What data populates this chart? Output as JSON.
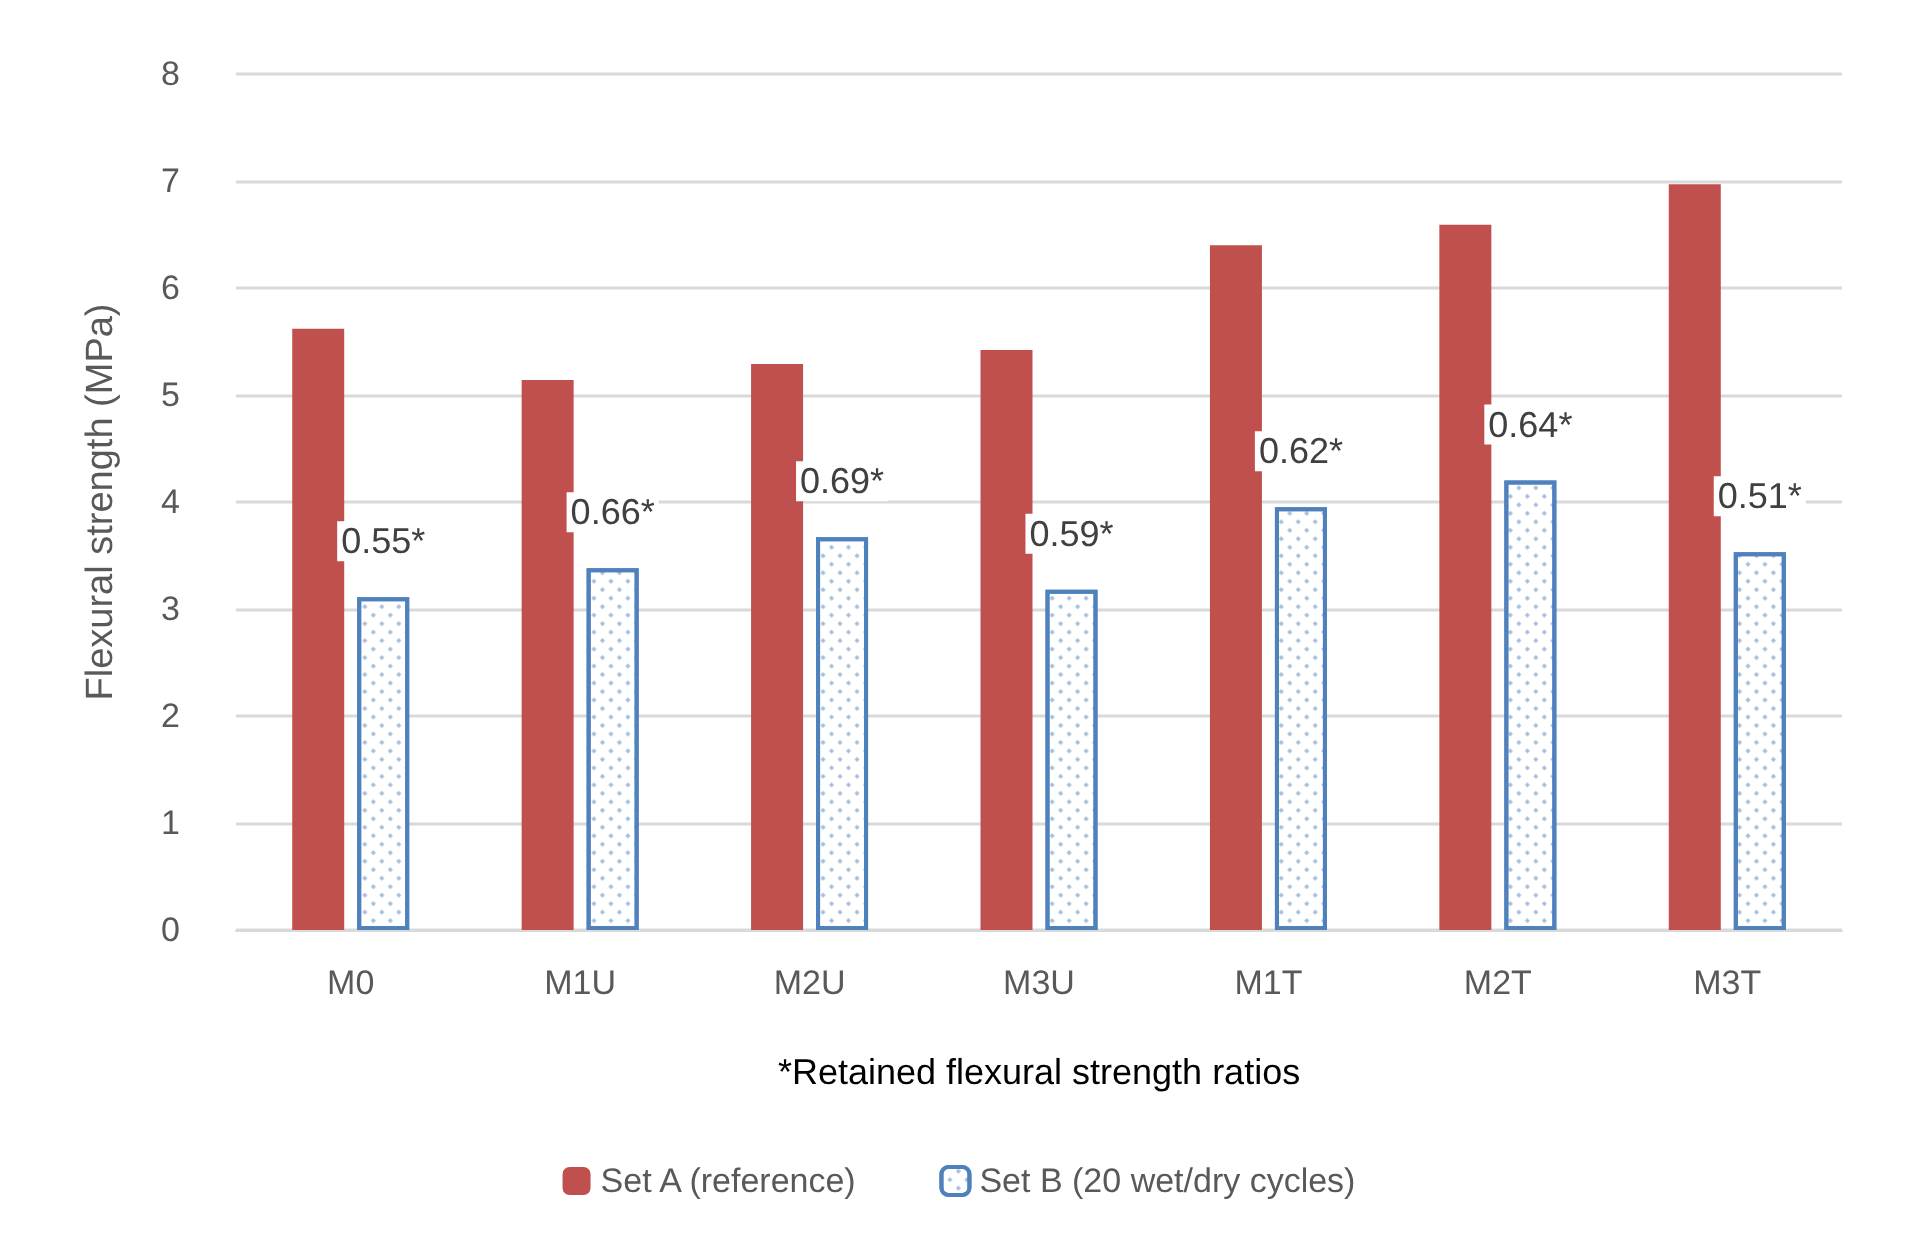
{
  "chart_data": {
    "type": "bar",
    "xlabel": "*Retained flexural strength ratios",
    "ylabel": "Flexural strength (MPa)",
    "categories": [
      "M0",
      "M1U",
      "M2U",
      "M3U",
      "M1T",
      "M2T",
      "M3T"
    ],
    "series": [
      {
        "name": "Set A (reference)",
        "color": "#c0504d",
        "values": [
          5.62,
          5.14,
          5.29,
          5.42,
          6.4,
          6.59,
          6.97
        ]
      },
      {
        "name": "Set B (20 wet/dry cycles)",
        "color": "#4f81bd",
        "values": [
          3.11,
          3.38,
          3.67,
          3.18,
          3.95,
          4.2,
          3.53
        ]
      }
    ],
    "annotations": [
      {
        "text": "0.55*",
        "x": "M0",
        "y": 3.11
      },
      {
        "text": "0.66*",
        "x": "M1U",
        "y": 3.38
      },
      {
        "text": "0.69*",
        "x": "M2U",
        "y": 3.67
      },
      {
        "text": "0.59*",
        "x": "M3U",
        "y": 3.18
      },
      {
        "text": "0.62*",
        "x": "M1T",
        "y": 3.95
      },
      {
        "text": "0.64*",
        "x": "M2T",
        "y": 4.2
      },
      {
        "text": "0.51*",
        "x": "M3T",
        "y": 3.53
      }
    ],
    "ylim": [
      0,
      8
    ],
    "yticks": [
      0,
      1,
      2,
      3,
      4,
      5,
      6,
      7,
      8
    ],
    "grid": "y",
    "legend": "bottom"
  }
}
